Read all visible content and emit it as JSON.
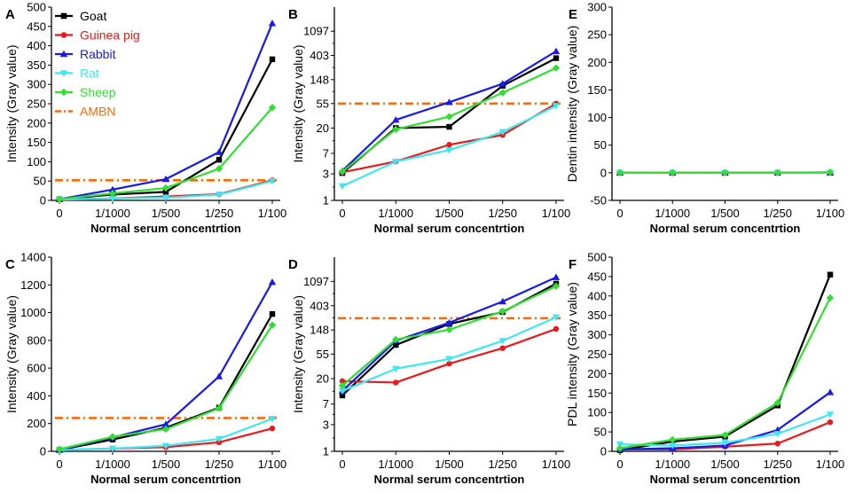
{
  "colors": {
    "Goat": "#000000",
    "Guinea pig": "#e8191b",
    "Rabbit": "#1a1ae6",
    "Rat": "#3ee8f2",
    "Sheep": "#33dd33",
    "AMBN": "#ff6a00"
  },
  "legend": {
    "items": [
      {
        "name": "Goat",
        "marker": "square"
      },
      {
        "name": "Guinea pig",
        "marker": "circle"
      },
      {
        "name": "Rabbit",
        "marker": "triangle-up"
      },
      {
        "name": "Rat",
        "marker": "triangle-down"
      },
      {
        "name": "Sheep",
        "marker": "diamond"
      },
      {
        "name": "AMBN",
        "marker": "dashdot"
      }
    ]
  },
  "chart_data": [
    {
      "panel": "A",
      "type": "line",
      "scale": "linear",
      "ylabel": "Intensity (Gray value)",
      "xlabel": "Normal serum concentrtion",
      "categories": [
        "0",
        "1/1000",
        "1/500",
        "1/250",
        "1/100"
      ],
      "ylim": [
        0,
        500
      ],
      "yticks": [
        0,
        50,
        100,
        150,
        200,
        250,
        300,
        350,
        400,
        450,
        500
      ],
      "reference": {
        "name": "AMBN",
        "value": 52
      },
      "series": [
        {
          "name": "Goat",
          "values": [
            3,
            15,
            22,
            105,
            365
          ]
        },
        {
          "name": "Guinea pig",
          "values": [
            3,
            5,
            10,
            16,
            52
          ]
        },
        {
          "name": "Rabbit",
          "values": [
            3,
            28,
            55,
            125,
            458
          ]
        },
        {
          "name": "Rat",
          "values": [
            2,
            5,
            7,
            15,
            50
          ]
        },
        {
          "name": "Sheep",
          "values": [
            3,
            18,
            32,
            82,
            240
          ]
        }
      ]
    },
    {
      "panel": "B",
      "type": "line",
      "scale": "log",
      "ylabel": "Intensity (Gray value)",
      "xlabel": "Normal serum concentrtion",
      "categories": [
        "0",
        "1/1000",
        "1/500",
        "1/250",
        "1/100"
      ],
      "ylim": [
        1,
        2981
      ],
      "yticks": [
        1,
        3,
        7,
        20,
        55,
        148,
        403,
        1097
      ],
      "reference": {
        "name": "AMBN",
        "value": 55
      },
      "series": [
        {
          "name": "Goat",
          "values": [
            3.1,
            20,
            21,
            115,
            360
          ]
        },
        {
          "name": "Guinea pig",
          "values": [
            3.2,
            5,
            10,
            15,
            55
          ]
        },
        {
          "name": "Rabbit",
          "values": [
            3.4,
            28,
            58,
            125,
            480
          ]
        },
        {
          "name": "Rat",
          "values": [
            1.8,
            5,
            8,
            17,
            50
          ]
        },
        {
          "name": "Sheep",
          "values": [
            3.3,
            19,
            32,
            86,
            240
          ]
        }
      ]
    },
    {
      "panel": "E",
      "type": "line",
      "scale": "linear",
      "ylabel": "Dentin intensity (Gray value)",
      "xlabel": "Normal serum concentrtion",
      "categories": [
        "0",
        "1/1000",
        "1/500",
        "1/250",
        "1/100"
      ],
      "ylim": [
        -50,
        300
      ],
      "yticks": [
        -50,
        0,
        50,
        100,
        150,
        200,
        250,
        300
      ],
      "series": [
        {
          "name": "Goat",
          "values": [
            0,
            0,
            0,
            0,
            0
          ]
        },
        {
          "name": "Guinea pig",
          "values": [
            0,
            0,
            0,
            0,
            0
          ]
        },
        {
          "name": "Rabbit",
          "values": [
            0,
            0,
            0,
            0,
            0
          ]
        },
        {
          "name": "Rat",
          "values": [
            0,
            0,
            0,
            0,
            0
          ]
        },
        {
          "name": "Sheep",
          "values": [
            0,
            0,
            0,
            0,
            1
          ]
        }
      ]
    },
    {
      "panel": "C",
      "type": "line",
      "scale": "linear",
      "ylabel": "Intensity (Gray value)",
      "xlabel": "Normal serum concentrtion",
      "categories": [
        "0",
        "1/1000",
        "1/500",
        "1/250",
        "1/100"
      ],
      "ylim": [
        0,
        1400
      ],
      "yticks": [
        0,
        200,
        400,
        600,
        800,
        1000,
        1200,
        1400
      ],
      "reference": {
        "name": "AMBN",
        "value": 240
      },
      "series": [
        {
          "name": "Goat",
          "values": [
            10,
            85,
            170,
            315,
            990
          ]
        },
        {
          "name": "Guinea pig",
          "values": [
            10,
            20,
            30,
            65,
            165
          ]
        },
        {
          "name": "Rabbit",
          "values": [
            10,
            100,
            195,
            540,
            1220
          ]
        },
        {
          "name": "Rat",
          "values": [
            8,
            20,
            40,
            90,
            235
          ]
        },
        {
          "name": "Sheep",
          "values": [
            15,
            105,
            160,
            310,
            910
          ]
        }
      ]
    },
    {
      "panel": "D",
      "type": "line",
      "scale": "log",
      "ylabel": "Intensity (Gray value)",
      "xlabel": "Normal serum concentrtion",
      "categories": [
        "0",
        "1/1000",
        "1/500",
        "1/250",
        "1/100"
      ],
      "ylim": [
        1,
        2981
      ],
      "yticks": [
        1,
        3,
        7,
        20,
        55,
        148,
        403,
        1097
      ],
      "reference": {
        "name": "AMBN",
        "value": 240
      },
      "series": [
        {
          "name": "Goat",
          "values": [
            10,
            80,
            190,
            310,
            1000
          ]
        },
        {
          "name": "Guinea pig",
          "values": [
            18,
            17,
            37,
            70,
            155
          ]
        },
        {
          "name": "Rabbit",
          "values": [
            12,
            95,
            200,
            480,
            1300
          ]
        },
        {
          "name": "Rat",
          "values": [
            12,
            30,
            45,
            95,
            250
          ]
        },
        {
          "name": "Sheep",
          "values": [
            15,
            100,
            150,
            320,
            900
          ]
        }
      ]
    },
    {
      "panel": "F",
      "type": "line",
      "scale": "linear",
      "ylabel": "PDL intensity (Gray value)",
      "xlabel": "Normal serum concentrtion",
      "categories": [
        "0",
        "1/1000",
        "1/500",
        "1/250",
        "1/100"
      ],
      "ylim": [
        0,
        500
      ],
      "yticks": [
        0,
        50,
        100,
        150,
        200,
        250,
        300,
        350,
        400,
        450,
        500
      ],
      "series": [
        {
          "name": "Goat",
          "values": [
            3,
            25,
            38,
            118,
            455
          ]
        },
        {
          "name": "Guinea pig",
          "values": [
            5,
            5,
            12,
            20,
            75
          ]
        },
        {
          "name": "Rabbit",
          "values": [
            5,
            8,
            15,
            55,
            152
          ]
        },
        {
          "name": "Rat",
          "values": [
            18,
            15,
            22,
            45,
            95
          ]
        },
        {
          "name": "Sheep",
          "values": [
            8,
            30,
            42,
            125,
            395
          ]
        }
      ]
    }
  ]
}
